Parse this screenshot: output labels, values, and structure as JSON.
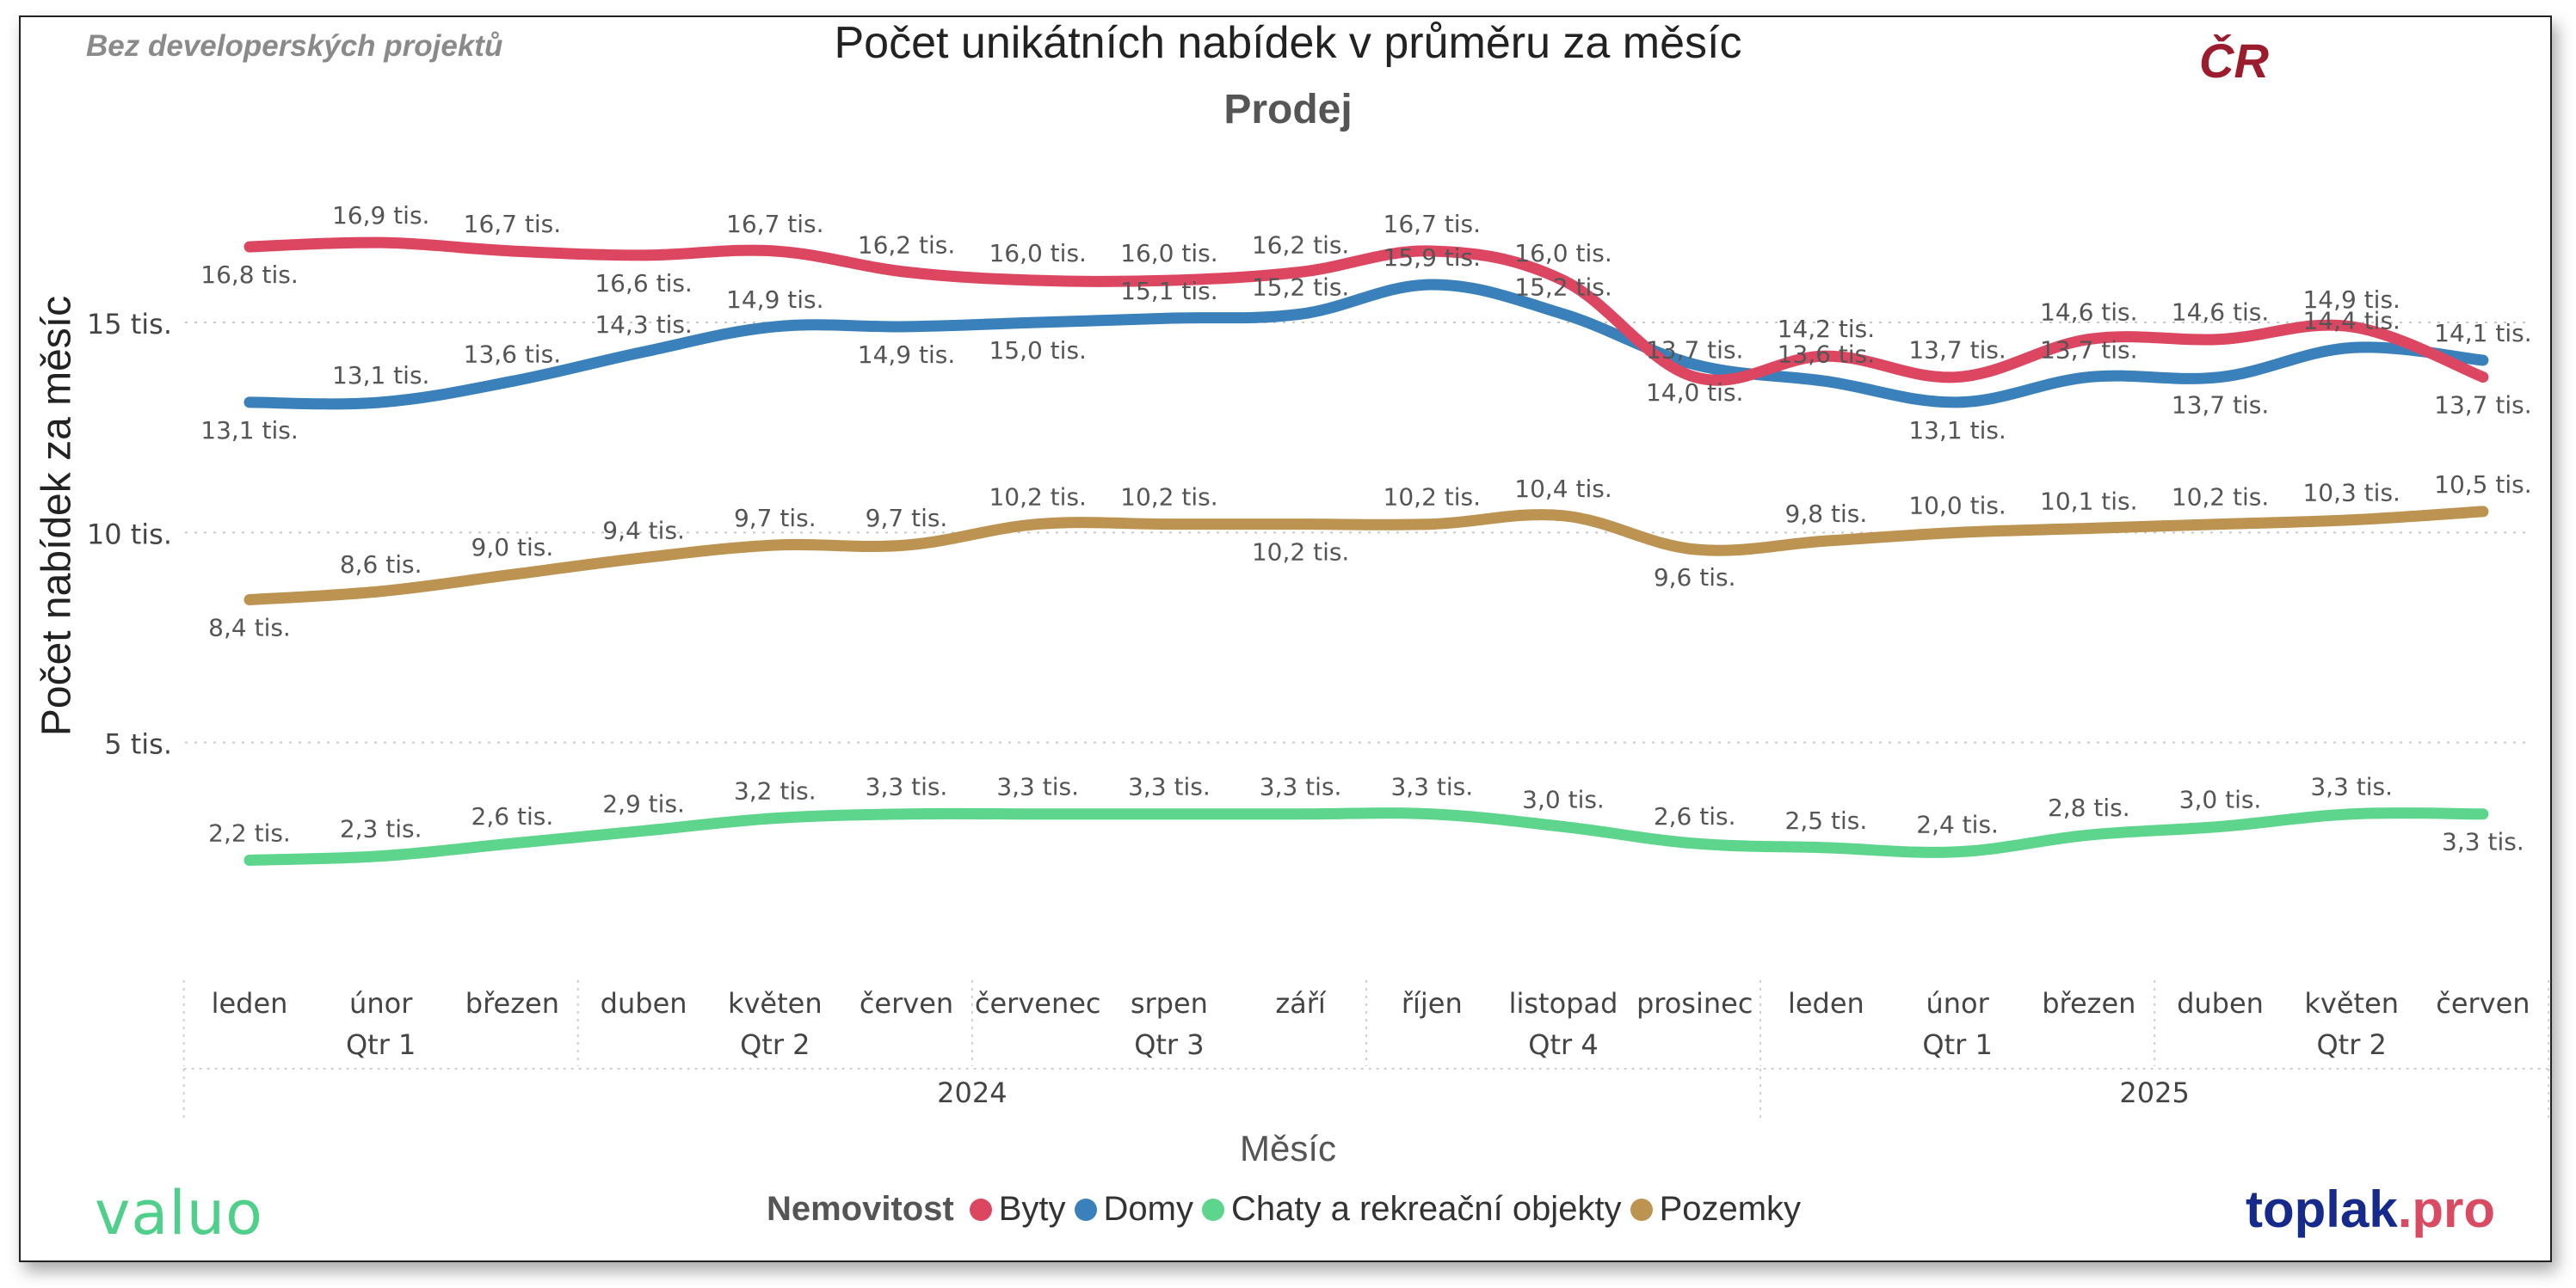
{
  "header": {
    "note": "Bez developerských projektů",
    "title": "Počet unikátních nabídek v průměru za měsíc",
    "subtitle": "Prodej",
    "region": "ČR"
  },
  "logos": {
    "left": "valuo",
    "right_part1": "toplak",
    "right_part2": ".pro"
  },
  "colors": {
    "byty": "#dc4660",
    "domy": "#3a81bc",
    "chaty": "#5dd58c",
    "pozemky": "#bc9350"
  },
  "chart_data": {
    "type": "line",
    "title": "Počet unikátních nabídek v průměru za měsíc",
    "subtitle": "Prodej",
    "xlabel": "Měsíc",
    "ylabel": "Počet nabídek za měsíc",
    "ylim": [
      0,
      18.5
    ],
    "y_ticks": [
      {
        "value": 5,
        "label": "5 tis."
      },
      {
        "value": 10,
        "label": "10 tis."
      },
      {
        "value": 15,
        "label": "15 tis."
      }
    ],
    "categories": [
      "leden",
      "únor",
      "březen",
      "duben",
      "květen",
      "červen",
      "červenec",
      "srpen",
      "září",
      "říjen",
      "listopad",
      "prosinec",
      "leden",
      "únor",
      "březen",
      "duben",
      "květen",
      "červen"
    ],
    "quarters": [
      {
        "label": "Qtr 1",
        "start": 0,
        "end": 2
      },
      {
        "label": "Qtr 2",
        "start": 3,
        "end": 5
      },
      {
        "label": "Qtr 3",
        "start": 6,
        "end": 8
      },
      {
        "label": "Qtr 4",
        "start": 9,
        "end": 11
      },
      {
        "label": "Qtr 1",
        "start": 12,
        "end": 14
      },
      {
        "label": "Qtr 2",
        "start": 15,
        "end": 17
      }
    ],
    "years": [
      {
        "label": "2024",
        "start": 0,
        "end": 11
      },
      {
        "label": "2025",
        "start": 12,
        "end": 17
      }
    ],
    "legend_title": "Nemovitost",
    "series": [
      {
        "name": "Byty",
        "key": "byty",
        "values": [
          16.8,
          16.9,
          16.7,
          16.6,
          16.7,
          16.2,
          16.0,
          16.0,
          16.2,
          16.7,
          16.0,
          13.7,
          14.2,
          13.7,
          14.6,
          14.6,
          14.9,
          13.7
        ],
        "labels": [
          "16,8 tis.",
          "16,9 tis.",
          "16,7 tis.",
          "16,6 tis.",
          "16,7 tis.",
          "16,2 tis.",
          "16,0 tis.",
          "16,0 tis.",
          "16,2 tis.",
          "16,7 tis.",
          "16,0 tis.",
          "13,7 tis.",
          "14,2 tis.",
          "13,7 tis.",
          "14,6 tis.",
          "14,6 tis.",
          "14,9 tis.",
          "13,7 tis."
        ],
        "label_pos": [
          "below",
          "above",
          "above",
          "below",
          "above",
          "above",
          "above",
          "above",
          "above",
          "above",
          "above",
          "above",
          "above",
          "above",
          "above",
          "above",
          "above",
          "below"
        ]
      },
      {
        "name": "Domy",
        "key": "domy",
        "values": [
          13.1,
          13.1,
          13.6,
          14.3,
          14.9,
          14.9,
          15.0,
          15.1,
          15.2,
          15.9,
          15.2,
          14.0,
          13.6,
          13.1,
          13.7,
          13.7,
          14.4,
          14.1
        ],
        "labels": [
          "13,1 tis.",
          "13,1 tis.",
          "13,6 tis.",
          "14,3 tis.",
          "14,9 tis.",
          "14,9 tis.",
          "15,0 tis.",
          "15,1 tis.",
          "15,2 tis.",
          "15,9 tis.",
          "15,2 tis.",
          "14,0 tis.",
          "13,6 tis.",
          "13,1 tis.",
          "13,7 tis.",
          "13,7 tis.",
          "14,4 tis.",
          "14,1 tis."
        ],
        "label_pos": [
          "below",
          "above",
          "above",
          "above",
          "above",
          "below",
          "below",
          "above",
          "above",
          "above",
          "above",
          "below",
          "above",
          "below",
          "above",
          "below",
          "above",
          "above"
        ]
      },
      {
        "name": "Chaty a rekreační objekty",
        "key": "chaty",
        "values": [
          2.2,
          2.3,
          2.6,
          2.9,
          3.2,
          3.3,
          3.3,
          3.3,
          3.3,
          3.3,
          3.0,
          2.6,
          2.5,
          2.4,
          2.8,
          3.0,
          3.3,
          3.3
        ],
        "labels": [
          "2,2 tis.",
          "2,3 tis.",
          "2,6 tis.",
          "2,9 tis.",
          "3,2 tis.",
          "3,3 tis.",
          "3,3 tis.",
          "3,3 tis.",
          "3,3 tis.",
          "3,3 tis.",
          "3,0 tis.",
          "2,6 tis.",
          "2,5 tis.",
          "2,4 tis.",
          "2,8 tis.",
          "3,0 tis.",
          "3,3 tis.",
          "3,3 tis."
        ],
        "label_pos": [
          "above",
          "above",
          "above",
          "above",
          "above",
          "above",
          "above",
          "above",
          "above",
          "above",
          "above",
          "above",
          "above",
          "above",
          "above",
          "above",
          "above",
          "below"
        ]
      },
      {
        "name": "Pozemky",
        "key": "pozemky",
        "values": [
          8.4,
          8.6,
          9.0,
          9.4,
          9.7,
          9.7,
          10.2,
          10.2,
          10.2,
          10.2,
          10.4,
          9.6,
          9.8,
          10.0,
          10.1,
          10.2,
          10.3,
          10.5
        ],
        "labels": [
          "8,4 tis.",
          "8,6 tis.",
          "9,0 tis.",
          "9,4 tis.",
          "9,7 tis.",
          "9,7 tis.",
          "10,2 tis.",
          "10,2 tis.",
          "10,2 tis.",
          "10,2 tis.",
          "10,4 tis.",
          "9,6 tis.",
          "9,8 tis.",
          "10,0 tis.",
          "10,1 tis.",
          "10,2 tis.",
          "10,3 tis.",
          "10,5 tis."
        ],
        "label_pos": [
          "below",
          "above",
          "above",
          "above",
          "above",
          "above",
          "above",
          "above",
          "below",
          "above",
          "above",
          "below",
          "above",
          "above",
          "above",
          "above",
          "above",
          "above"
        ]
      }
    ]
  }
}
